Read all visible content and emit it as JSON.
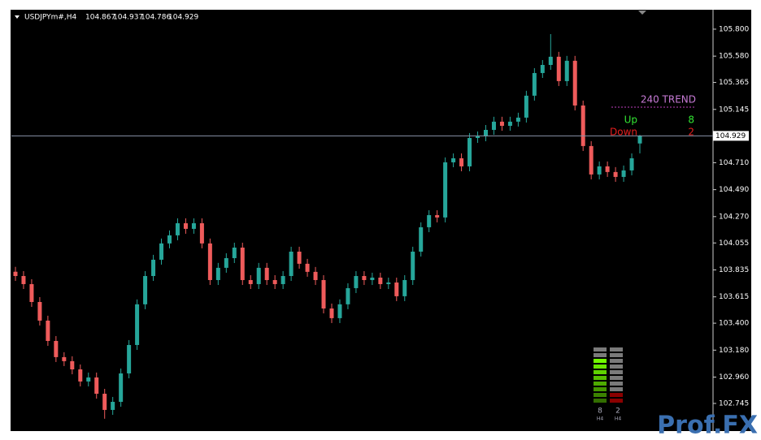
{
  "header": {
    "symbol": "USDJPYm#,H4"
  },
  "chart_data": {
    "type": "candlestick",
    "open": [
      103.82,
      103.785,
      103.719,
      103.573,
      103.421,
      103.255,
      103.123,
      103.09,
      103.023,
      102.924,
      102.957,
      102.824,
      102.692,
      102.758,
      102.99,
      103.222,
      103.554,
      103.785,
      103.918,
      104.051,
      104.117,
      104.216,
      104.17,
      104.216,
      104.051,
      103.752,
      103.852,
      103.931,
      104.017,
      103.752,
      103.719,
      103.852,
      103.752,
      103.719,
      103.785,
      103.984,
      103.885,
      103.819,
      103.752,
      103.52,
      103.441,
      103.554,
      103.686,
      103.785,
      103.752,
      103.772,
      103.719,
      103.732,
      103.62,
      103.752,
      103.984,
      104.183,
      104.282,
      104.263,
      104.713,
      104.746,
      104.68,
      104.912,
      104.925,
      104.978,
      105.045,
      105.011,
      105.045,
      105.078,
      105.257,
      105.442,
      105.508,
      105.575,
      105.376,
      105.542,
      105.177,
      104.846,
      104.614,
      104.68,
      104.634,
      104.594,
      104.647,
      104.867
    ],
    "high": [
      103.86,
      103.825,
      103.759,
      103.613,
      103.461,
      103.295,
      103.163,
      103.13,
      103.063,
      102.997,
      102.997,
      102.864,
      102.798,
      103.03,
      103.262,
      103.594,
      103.825,
      103.958,
      104.091,
      104.157,
      104.256,
      104.256,
      104.256,
      104.256,
      104.091,
      103.892,
      103.971,
      104.057,
      104.057,
      103.792,
      103.892,
      103.892,
      103.792,
      103.825,
      104.024,
      104.024,
      103.925,
      103.859,
      103.792,
      103.56,
      103.594,
      103.726,
      103.825,
      103.825,
      103.812,
      103.812,
      103.772,
      103.772,
      103.792,
      104.024,
      104.223,
      104.322,
      104.322,
      104.753,
      104.786,
      104.786,
      104.952,
      104.965,
      105.018,
      105.085,
      105.085,
      105.085,
      105.118,
      105.297,
      105.482,
      105.548,
      105.76,
      105.615,
      105.582,
      105.582,
      105.217,
      104.886,
      104.72,
      104.72,
      104.674,
      104.687,
      104.786,
      104.937
    ],
    "low": [
      103.745,
      103.679,
      103.533,
      103.381,
      103.215,
      103.083,
      103.05,
      102.983,
      102.884,
      102.884,
      102.784,
      102.62,
      102.652,
      102.718,
      102.95,
      103.182,
      103.514,
      103.745,
      103.878,
      104.011,
      104.077,
      104.13,
      104.13,
      104.011,
      103.712,
      103.712,
      103.812,
      103.891,
      103.712,
      103.679,
      103.679,
      103.712,
      103.679,
      103.679,
      103.745,
      103.845,
      103.779,
      103.712,
      103.48,
      103.401,
      103.401,
      103.514,
      103.646,
      103.712,
      103.712,
      103.679,
      103.679,
      103.58,
      103.58,
      103.712,
      103.944,
      104.143,
      104.223,
      104.223,
      104.673,
      104.64,
      104.64,
      104.872,
      104.885,
      104.938,
      104.971,
      104.971,
      105.005,
      105.038,
      105.217,
      105.402,
      105.468,
      105.336,
      105.336,
      105.137,
      104.806,
      104.574,
      104.574,
      104.594,
      104.554,
      104.554,
      104.607,
      104.786
    ],
    "close": [
      103.785,
      103.719,
      103.573,
      103.421,
      103.255,
      103.123,
      103.09,
      103.023,
      102.924,
      102.957,
      102.824,
      102.692,
      102.758,
      102.99,
      103.222,
      103.554,
      103.785,
      103.918,
      104.051,
      104.117,
      104.216,
      104.17,
      104.216,
      104.051,
      103.752,
      103.852,
      103.931,
      104.017,
      103.752,
      103.719,
      103.852,
      103.752,
      103.719,
      103.785,
      103.984,
      103.885,
      103.819,
      103.752,
      103.52,
      103.441,
      103.554,
      103.686,
      103.785,
      103.752,
      103.772,
      103.719,
      103.732,
      103.62,
      103.752,
      103.984,
      104.183,
      104.282,
      104.263,
      104.713,
      104.746,
      104.68,
      104.912,
      104.925,
      104.978,
      105.045,
      105.011,
      105.045,
      105.078,
      105.257,
      105.442,
      105.508,
      105.575,
      105.376,
      105.542,
      105.177,
      104.846,
      104.614,
      104.68,
      104.634,
      104.594,
      104.647,
      104.746,
      104.929
    ],
    "ylim": [
      102.526,
      105.952
    ],
    "yticks": [
      {
        "value": 105.8,
        "label": "105.800"
      },
      {
        "value": 105.58,
        "label": "105.580"
      },
      105.365,
      105.145,
      {
        "value": 104.71,
        "label": "104.710"
      },
      {
        "value": 104.49,
        "label": "104.490"
      },
      {
        "value": 104.27,
        "label": "104.270"
      },
      104.055,
      103.835,
      103.615,
      {
        "value": 103.4,
        "label": "103.400"
      },
      {
        "value": 103.18,
        "label": "103.180"
      },
      {
        "value": 102.96,
        "label": "102.960"
      },
      102.745
    ],
    "colors": {
      "up": "#26a69a",
      "down": "#ef5b5b"
    }
  },
  "trend_panel": {
    "title": "240 TREND",
    "up_label": "Up",
    "up_value": 8,
    "down_label": "Down",
    "down_value": 2
  },
  "meter": {
    "timeframe": "H4"
  },
  "watermark": "Prof.FX"
}
